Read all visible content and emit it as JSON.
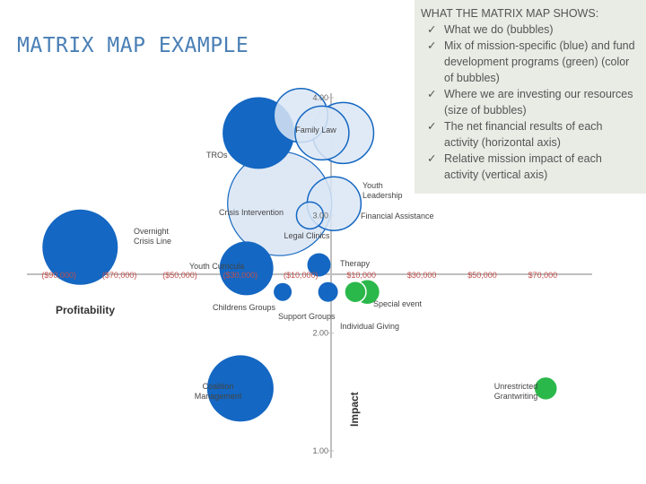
{
  "slide": {
    "title": "MATRIX MAP EXAMPLE"
  },
  "info_panel": {
    "heading": "WHAT THE MATRIX MAP SHOWS:",
    "items": [
      {
        "icon": "checkmark-icon",
        "text": "What we do (bubbles)"
      },
      {
        "icon": "checkmark-icon",
        "text": "Mix of mission-specific (blue) and fund development programs (green) (color of bubbles)"
      },
      {
        "icon": "checkmark-icon",
        "text": "Where we are investing our resources (size of bubbles)"
      },
      {
        "icon": "checkmark-icon",
        "text": "The net financial results of each activity (horizontal axis)"
      },
      {
        "icon": "checkmark-icon",
        "text": "Relative mission impact of each activity (vertical axis)"
      }
    ],
    "check_glyph": "✓"
  },
  "chart_data": {
    "type": "scatter",
    "xlabel": "Profitability",
    "ylabel": "Impact",
    "x_tick_labels": [
      "($90,000)",
      "($70,000)",
      "($50,000)",
      "($30,000)",
      "($10,000)",
      "$10,000",
      "$30,000",
      "$50,000",
      "$70,000"
    ],
    "x_ticks": [
      -90000,
      -70000,
      -50000,
      -30000,
      -10000,
      10000,
      30000,
      50000,
      70000
    ],
    "xlim": [
      -100000,
      80000
    ],
    "y_tick_labels": [
      "4.00",
      "3.00",
      "2.00",
      "1.00"
    ],
    "y_ticks": [
      4,
      3,
      2,
      1
    ],
    "ylim": [
      1,
      4
    ],
    "x_axis_at_y": 2.5,
    "colors": {
      "mission": "#1467c2",
      "mission_light": "#dbe6f4",
      "fund": "#2bb84a",
      "axis": "#bfbfbf"
    },
    "points": [
      {
        "label": "Family Law",
        "x": -10000,
        "y": 3.85,
        "size": 30,
        "style": "light-outline"
      },
      {
        "label": "TROs",
        "x": -24000,
        "y": 3.7,
        "size": 40,
        "style": "solid"
      },
      {
        "label": "",
        "x": -3000,
        "y": 3.7,
        "size": 30,
        "style": "light-outline"
      },
      {
        "label": "Youth Leadership",
        "x": 4000,
        "y": 3.7,
        "size": 34,
        "style": "light-outline"
      },
      {
        "label": "Crisis Intervention",
        "x": -17000,
        "y": 3.1,
        "size": 58,
        "style": "light"
      },
      {
        "label": "Financial Assistance",
        "x": 1000,
        "y": 3.1,
        "size": 30,
        "style": "light-outline"
      },
      {
        "label": "Legal Clinics",
        "x": -7000,
        "y": 3.0,
        "size": 15,
        "style": "light-outline"
      },
      {
        "label": "Overnight Crisis Line",
        "x": -83000,
        "y": 2.73,
        "size": 42,
        "style": "solid"
      },
      {
        "label": "Youth Curricula",
        "x": -28000,
        "y": 2.55,
        "size": 30,
        "style": "solid"
      },
      {
        "label": "Therapy",
        "x": -4000,
        "y": 2.58,
        "size": 13,
        "style": "solid"
      },
      {
        "label": "Childrens Groups",
        "x": -16000,
        "y": 2.35,
        "size": 10,
        "style": "solid"
      },
      {
        "label": "Support Groups",
        "x": -1000,
        "y": 2.35,
        "size": 11,
        "style": "solid"
      },
      {
        "label": "Special event",
        "x": 12000,
        "y": 2.35,
        "size": 14,
        "style": "fund"
      },
      {
        "label": "Individual Giving",
        "x": 8000,
        "y": 2.35,
        "size": 12,
        "style": "fund"
      },
      {
        "label": "Coalition Management",
        "x": -30000,
        "y": 1.53,
        "size": 37,
        "style": "solid"
      },
      {
        "label": "Unrestricted Grantwriting",
        "x": 71000,
        "y": 1.53,
        "size": 13,
        "style": "fund"
      }
    ]
  }
}
